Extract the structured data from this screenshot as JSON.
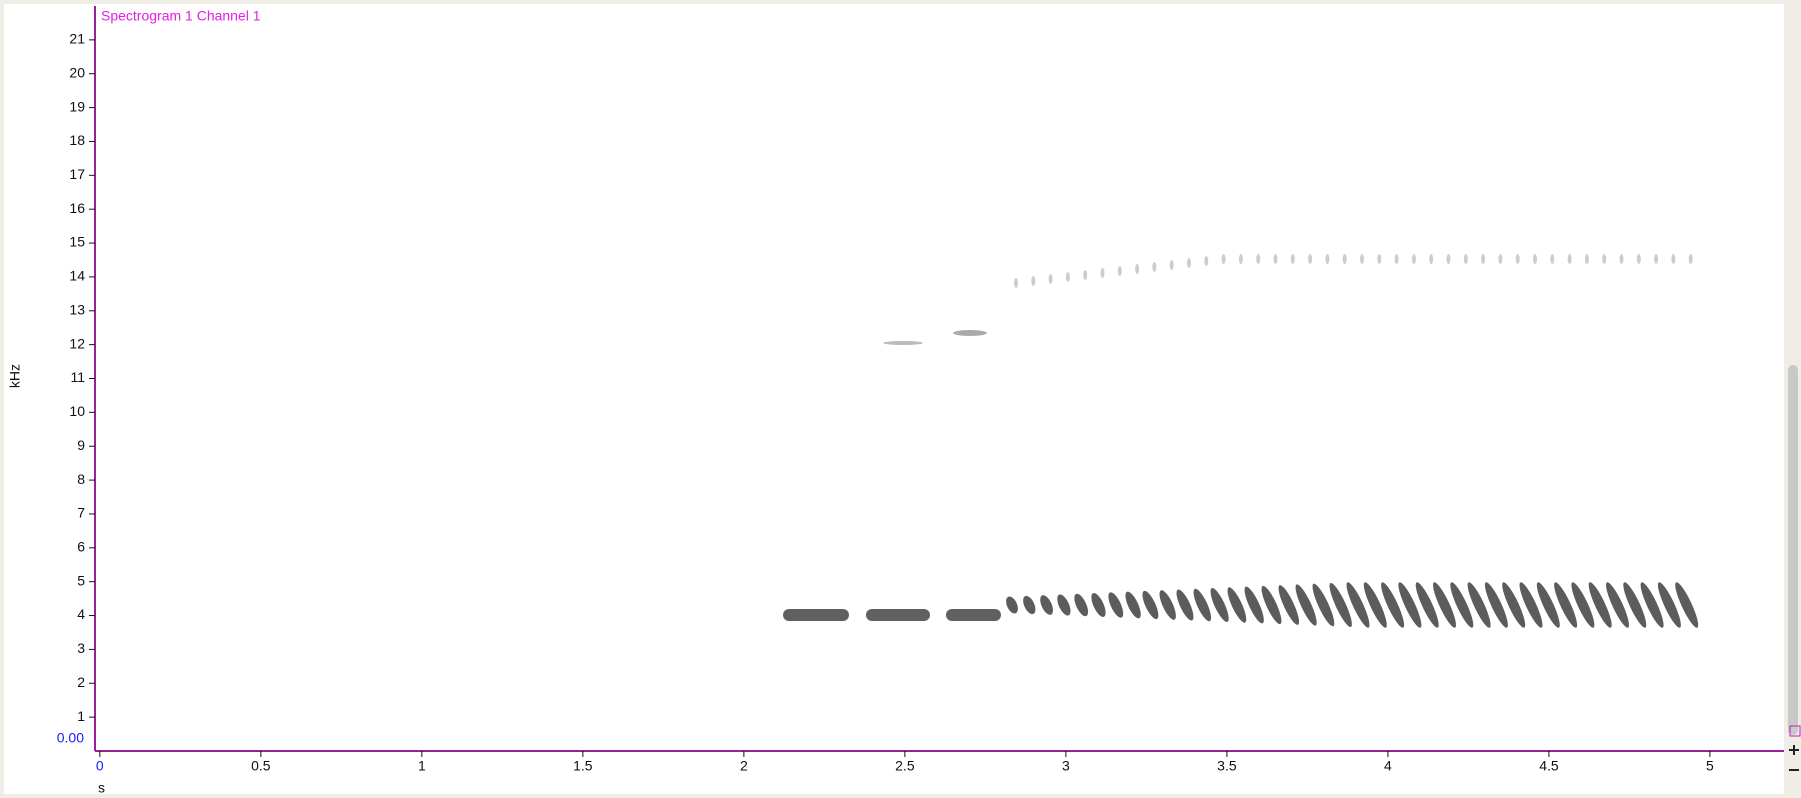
{
  "chart_data": {
    "type": "spectrogram",
    "title": "Spectrogram 1  Channel 1",
    "ylabel": "kHz",
    "xlabel": "s",
    "y_readout": "0.00",
    "xlim": [
      -0.015,
      5.23
    ],
    "xticks": [
      0,
      0.5,
      1,
      1.5,
      2,
      2.5,
      3,
      3.5,
      4,
      4.5,
      5
    ],
    "ylim": [
      0,
      22
    ],
    "yticks": [
      1,
      2,
      3,
      4,
      5,
      6,
      7,
      8,
      9,
      10,
      11,
      12,
      13,
      14,
      15,
      16,
      17,
      18,
      19,
      20,
      21
    ],
    "axis_color": "#9a1f9a"
  }
}
